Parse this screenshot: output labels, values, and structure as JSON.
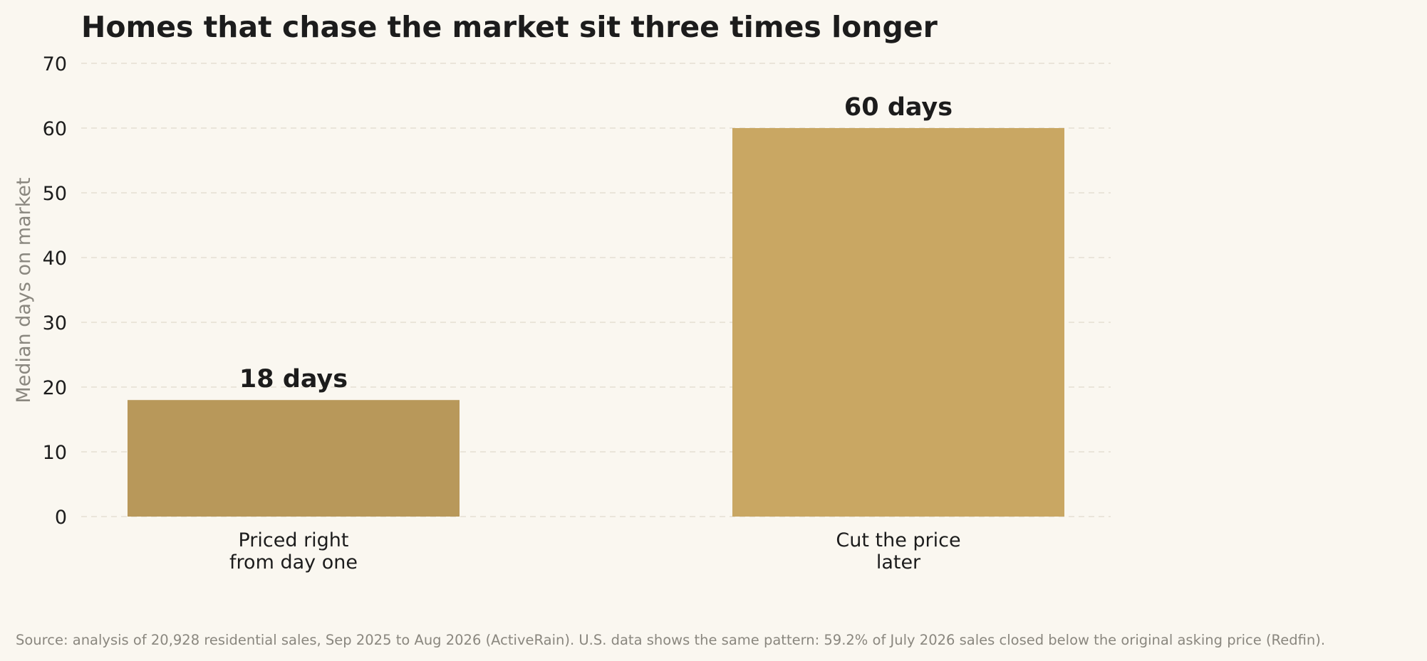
{
  "chart_data": {
    "type": "bar",
    "title": "Homes that chase the market sit three times longer",
    "ylabel": "Median days on market",
    "xlabel": "",
    "ylim": [
      0,
      70
    ],
    "yticks": [
      0,
      10,
      20,
      30,
      40,
      50,
      60,
      70
    ],
    "grid": "horizontal dashed",
    "categories": [
      [
        "Priced right",
        "from day one"
      ],
      [
        "Cut the price",
        "later"
      ]
    ],
    "values": [
      18,
      60
    ],
    "data_labels": [
      "18 days",
      "60 days"
    ],
    "colors": [
      "#b8985a",
      "#c9a763"
    ],
    "source": "Source: analysis of 20,928 residential sales, Sep 2025 to Aug 2026 (ActiveRain). U.S. data shows the same pattern: 59.2% of July 2026 sales closed below the original asking price (Redfin)."
  }
}
